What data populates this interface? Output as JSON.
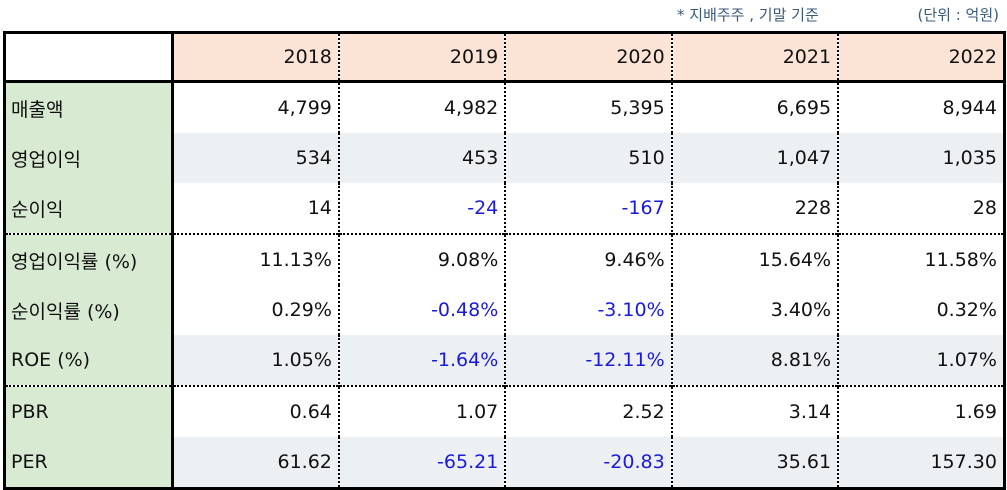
{
  "notes": {
    "basis": "* 지배주주 , 기말 기준",
    "unit": "(단위 : 억원)"
  },
  "colors": {
    "header_bg": "#fbe4d5",
    "label_bg": "#d9ead3",
    "row_shade": "#edf0f3",
    "negative": "#1a1adb"
  },
  "table": {
    "years": [
      "2018",
      "2019",
      "2020",
      "2021",
      "2022"
    ],
    "rows": [
      {
        "label": "매출액",
        "values": [
          "4,799",
          "4,982",
          "5,395",
          "6,695",
          "8,944"
        ]
      },
      {
        "label": "영업이익",
        "values": [
          "534",
          "453",
          "510",
          "1,047",
          "1,035"
        ]
      },
      {
        "label": "순이익",
        "values": [
          "14",
          "-24",
          "-167",
          "228",
          "28"
        ]
      },
      {
        "label": "영업이익률 (%)",
        "values": [
          "11.13%",
          "9.08%",
          "9.46%",
          "15.64%",
          "11.58%"
        ]
      },
      {
        "label": "순이익률 (%)",
        "values": [
          "0.29%",
          "-0.48%",
          "-3.10%",
          "3.40%",
          "0.32%"
        ]
      },
      {
        "label": "ROE (%)",
        "values": [
          "1.05%",
          "-1.64%",
          "-12.11%",
          "8.81%",
          "1.07%"
        ]
      },
      {
        "label": "PBR",
        "values": [
          "0.64",
          "1.07",
          "2.52",
          "3.14",
          "1.69"
        ]
      },
      {
        "label": "PER",
        "values": [
          "61.62",
          "-65.21",
          "-20.83",
          "35.61",
          "157.30"
        ]
      }
    ]
  }
}
